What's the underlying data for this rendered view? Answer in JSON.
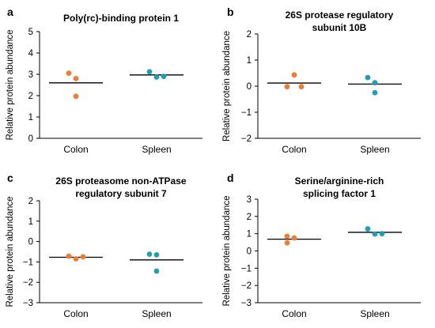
{
  "colors": {
    "Colon": "#ed7d31",
    "Spleen": "#1f9fb4",
    "mean_line": "#000000",
    "axis": "#000000"
  },
  "chart_data": [
    {
      "panel": "a",
      "type": "scatter",
      "title": "Poly(rc)-binding protein 1",
      "ylabel": "Relative protein abundance",
      "xlabel": "",
      "categories": [
        "Colon",
        "Spleen"
      ],
      "ylim": [
        0,
        5
      ],
      "yticks": [
        0,
        1,
        2,
        3,
        4,
        5
      ],
      "grid": false,
      "legend": "none",
      "series": [
        {
          "category": "Colon",
          "points": [
            {
              "offset": -1,
              "y": 3.05
            },
            {
              "offset": 0,
              "y": 2.8
            },
            {
              "offset": 0,
              "y": 1.97
            }
          ],
          "mean": 2.6
        },
        {
          "category": "Spleen",
          "points": [
            {
              "offset": -1,
              "y": 3.12
            },
            {
              "offset": 0,
              "y": 2.87
            },
            {
              "offset": 1,
              "y": 2.9
            }
          ],
          "mean": 2.97
        }
      ]
    },
    {
      "panel": "b",
      "type": "scatter",
      "title": "26S protease regulatory subunit 10B",
      "ylabel": "Relative protein abundance",
      "xlabel": "",
      "categories": [
        "Colon",
        "Spleen"
      ],
      "ylim": [
        -2,
        2
      ],
      "yticks": [
        -2,
        -1,
        0,
        1,
        2
      ],
      "grid": false,
      "legend": "none",
      "series": [
        {
          "category": "Colon",
          "points": [
            {
              "offset": -1,
              "y": -0.02
            },
            {
              "offset": 0,
              "y": 0.43
            },
            {
              "offset": 1,
              "y": -0.02
            }
          ],
          "mean": 0.12
        },
        {
          "category": "Spleen",
          "points": [
            {
              "offset": -1,
              "y": 0.33
            },
            {
              "offset": 0,
              "y": 0.13
            },
            {
              "offset": 0,
              "y": -0.25
            }
          ],
          "mean": 0.08
        }
      ]
    },
    {
      "panel": "c",
      "type": "scatter",
      "title": "26S proteasome non-ATPase regulatory subunit 7",
      "ylabel": "Relative protein abundance",
      "xlabel": "",
      "categories": [
        "Colon",
        "Spleen"
      ],
      "ylim": [
        -3,
        2
      ],
      "yticks": [
        -3,
        -2,
        -1,
        0,
        1,
        2
      ],
      "grid": false,
      "legend": "none",
      "series": [
        {
          "category": "Colon",
          "points": [
            {
              "offset": -1,
              "y": -0.72
            },
            {
              "offset": 0,
              "y": -0.85
            },
            {
              "offset": 1,
              "y": -0.75
            }
          ],
          "mean": -0.77
        },
        {
          "category": "Spleen",
          "points": [
            {
              "offset": -1,
              "y": -0.62
            },
            {
              "offset": 0,
              "y": -0.65
            },
            {
              "offset": 0,
              "y": -1.45
            }
          ],
          "mean": -0.9
        }
      ]
    },
    {
      "panel": "d",
      "type": "scatter",
      "title": "Serine/arginine-rich splicing factor 1",
      "ylabel": "Relative protein abundance",
      "xlabel": "",
      "categories": [
        "Colon",
        "Spleen"
      ],
      "ylim": [
        -3,
        3
      ],
      "yticks": [
        -3,
        -2,
        -1,
        0,
        1,
        2,
        3
      ],
      "grid": false,
      "legend": "none",
      "series": [
        {
          "category": "Colon",
          "points": [
            {
              "offset": -1,
              "y": 0.85
            },
            {
              "offset": 0,
              "y": 0.75
            },
            {
              "offset": -1,
              "y": 0.47
            }
          ],
          "mean": 0.68
        },
        {
          "category": "Spleen",
          "points": [
            {
              "offset": -1,
              "y": 1.28
            },
            {
              "offset": 0,
              "y": 0.98
            },
            {
              "offset": 1,
              "y": 1.0
            }
          ],
          "mean": 1.08
        }
      ]
    }
  ]
}
